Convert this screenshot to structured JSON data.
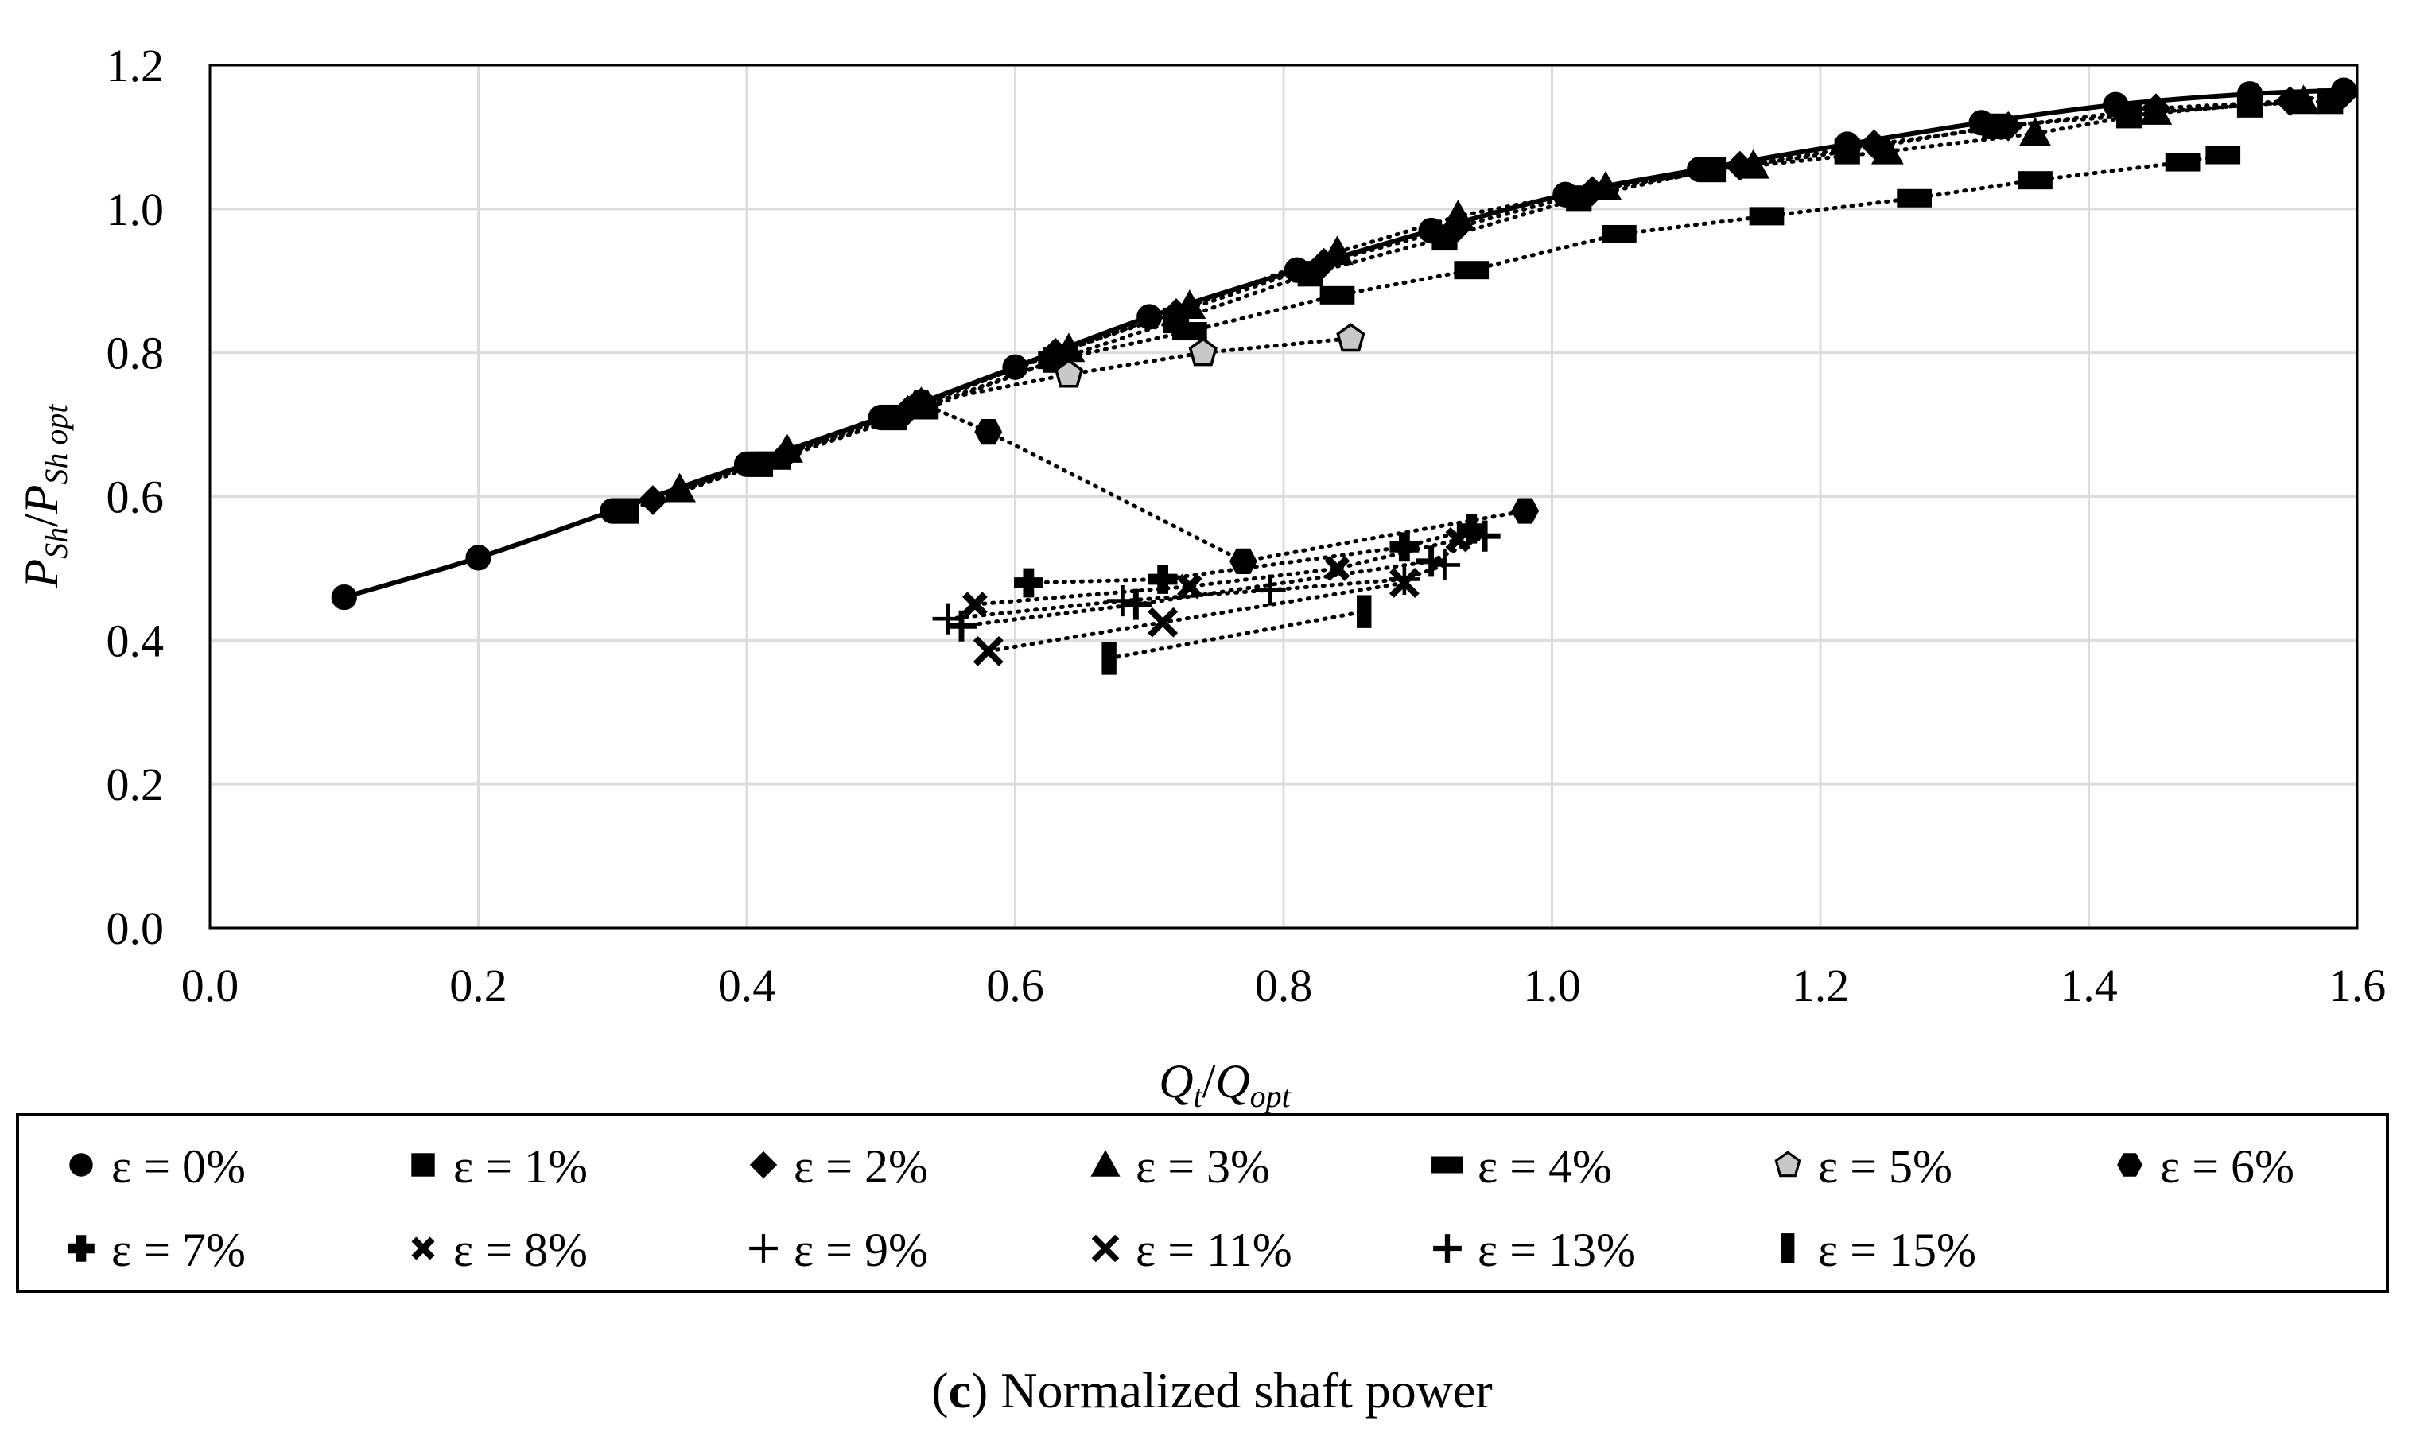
{
  "chart_data": {
    "type": "scatter",
    "title": "",
    "caption": {
      "label": "(c)",
      "text": "Normalized shaft power"
    },
    "xlabel": {
      "main": "Q",
      "main_sub": "t",
      "sep": "/",
      "den": "Q",
      "den_sub": "opt"
    },
    "ylabel": {
      "main": "P",
      "main_sub": "Sh",
      "sep": "/",
      "den": "P",
      "den_sub": "Sh opt"
    },
    "xlim": [
      0,
      1.6
    ],
    "ylim": [
      0,
      1.2
    ],
    "x_ticks": [
      "0.0",
      "0.2",
      "0.4",
      "0.6",
      "0.8",
      "1.0",
      "1.2",
      "1.4",
      "1.6"
    ],
    "y_ticks": [
      "0.0",
      "0.2",
      "0.4",
      "0.6",
      "0.8",
      "1.0",
      "1.2"
    ],
    "grid": true,
    "legend_position": "bottom",
    "series": [
      {
        "name": "ε = 0%",
        "marker": "circle",
        "line": "solid",
        "x": [
          0.1,
          0.2,
          0.3,
          0.4,
          0.5,
          0.6,
          0.7,
          0.81,
          0.91,
          1.01,
          1.11,
          1.22,
          1.32,
          1.42,
          1.52,
          1.59
        ],
        "y": [
          0.46,
          0.515,
          0.58,
          0.645,
          0.71,
          0.78,
          0.85,
          0.915,
          0.97,
          1.02,
          1.055,
          1.09,
          1.12,
          1.145,
          1.16,
          1.165
        ]
      },
      {
        "name": "ε = 1%",
        "marker": "square",
        "line": "dotted",
        "x": [
          0.31,
          0.41,
          0.51,
          0.63,
          0.72,
          0.82,
          0.92,
          1.02,
          1.12,
          1.22,
          1.33,
          1.43,
          1.52,
          1.58
        ],
        "y": [
          0.58,
          0.645,
          0.71,
          0.79,
          0.845,
          0.91,
          0.96,
          1.015,
          1.055,
          1.08,
          1.115,
          1.13,
          1.145,
          1.15
        ]
      },
      {
        "name": "ε = 2%",
        "marker": "diamond",
        "line": "dotted",
        "x": [
          0.33,
          0.43,
          0.52,
          0.63,
          0.72,
          0.83,
          0.93,
          1.03,
          1.14,
          1.24,
          1.34,
          1.45,
          1.55,
          1.59
        ],
        "y": [
          0.595,
          0.66,
          0.72,
          0.8,
          0.855,
          0.925,
          0.975,
          1.025,
          1.06,
          1.09,
          1.115,
          1.14,
          1.15,
          1.16
        ]
      },
      {
        "name": "ε = 3%",
        "marker": "triangle",
        "line": "dotted",
        "x": [
          0.35,
          0.43,
          0.53,
          0.64,
          0.73,
          0.84,
          0.93,
          1.04,
          1.15,
          1.25,
          1.36,
          1.45,
          1.56
        ],
        "y": [
          0.61,
          0.665,
          0.73,
          0.805,
          0.865,
          0.94,
          0.99,
          1.03,
          1.06,
          1.08,
          1.105,
          1.135,
          1.15
        ]
      },
      {
        "name": "ε = 4%",
        "marker": "dash",
        "line": "dotted",
        "x": [
          0.42,
          0.53,
          0.63,
          0.73,
          0.84,
          0.94,
          1.05,
          1.16,
          1.27,
          1.36,
          1.47,
          1.5
        ],
        "y": [
          0.65,
          0.72,
          0.79,
          0.83,
          0.88,
          0.915,
          0.965,
          0.99,
          1.015,
          1.04,
          1.065,
          1.075
        ]
      },
      {
        "name": "ε = 5%",
        "marker": "pentagon",
        "line": "dotted",
        "x": [
          0.53,
          0.64,
          0.74,
          0.85
        ],
        "y": [
          0.73,
          0.77,
          0.8,
          0.82
        ]
      },
      {
        "name": "ε = 6%",
        "marker": "hexagon",
        "line": "dotted",
        "x": [
          0.53,
          0.58,
          0.77,
          0.98
        ],
        "y": [
          0.73,
          0.69,
          0.51,
          0.58
        ]
      },
      {
        "name": "ε = 7%",
        "marker": "cross",
        "line": "dotted",
        "x": [
          0.61,
          0.71,
          0.89,
          0.94
        ],
        "y": [
          0.48,
          0.485,
          0.53,
          0.555
        ]
      },
      {
        "name": "ε = 8%",
        "marker": "xthick",
        "line": "dotted",
        "x": [
          0.57,
          0.73,
          0.84,
          0.93
        ],
        "y": [
          0.45,
          0.475,
          0.5,
          0.54
        ]
      },
      {
        "name": "ε = 9%",
        "marker": "plus-thin",
        "line": "dotted",
        "x": [
          0.55,
          0.68,
          0.79,
          0.89,
          0.92
        ],
        "y": [
          0.43,
          0.455,
          0.47,
          0.485,
          0.505
        ]
      },
      {
        "name": "ε = 11%",
        "marker": "x",
        "line": "dotted",
        "x": [
          0.58,
          0.71,
          0.89
        ],
        "y": [
          0.385,
          0.425,
          0.48
        ]
      },
      {
        "name": "ε = 13%",
        "marker": "plus",
        "line": "dotted",
        "x": [
          0.56,
          0.69,
          0.91,
          0.95
        ],
        "y": [
          0.42,
          0.45,
          0.51,
          0.545
        ]
      },
      {
        "name": "ε = 15%",
        "marker": "vbar",
        "line": "dotted",
        "x": [
          0.67,
          0.86
        ],
        "y": [
          0.375,
          0.44
        ]
      }
    ]
  }
}
